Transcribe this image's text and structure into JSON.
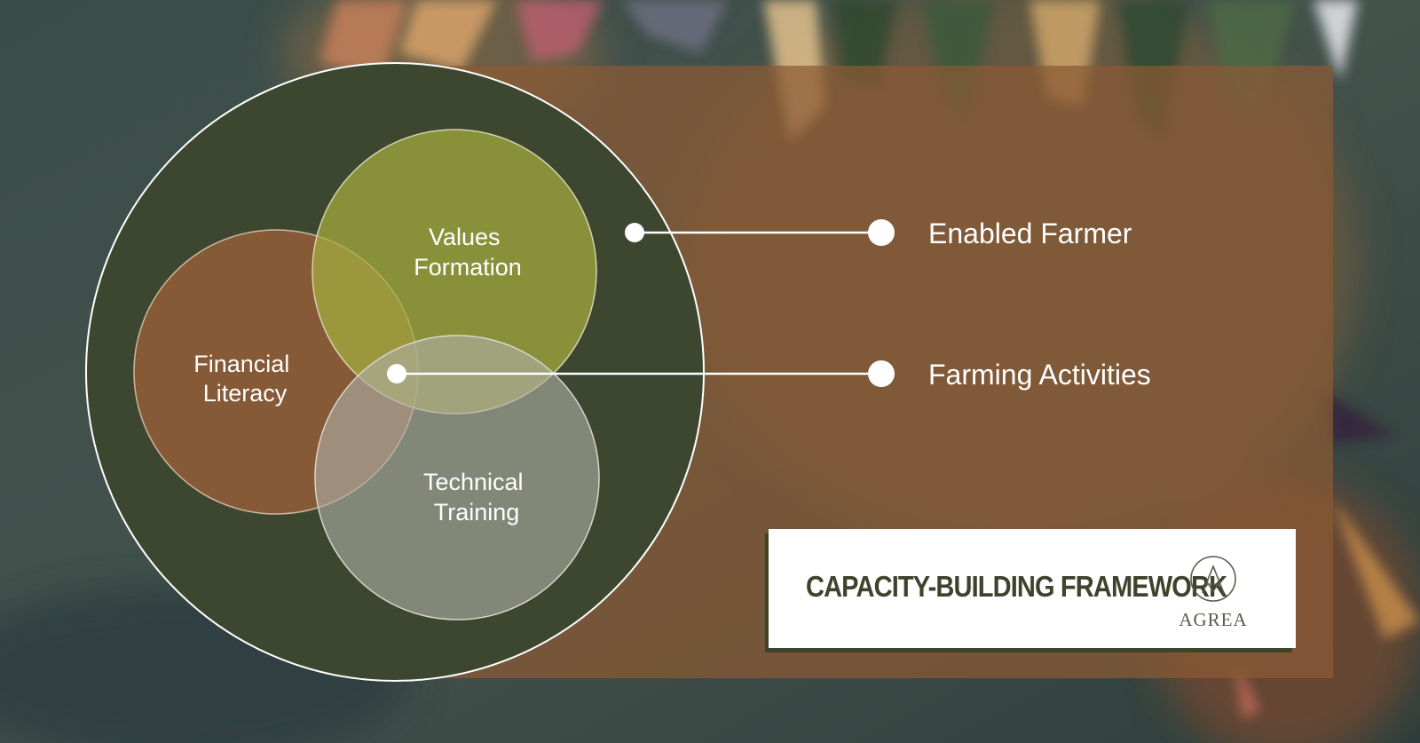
{
  "diagram": {
    "circles": [
      {
        "id": "values",
        "label_lines": [
          "Values",
          "Formation"
        ],
        "color": "#929a37"
      },
      {
        "id": "financial",
        "label_lines": [
          "Financial",
          "Literacy"
        ],
        "color": "#8c5b38"
      },
      {
        "id": "technical",
        "label_lines": [
          "Technical",
          "Training"
        ],
        "color": "#8c8c84"
      }
    ],
    "outer_circle_color": "#3d4730",
    "panel_color": "#8a5a35",
    "callouts": [
      {
        "id": "enabled-farmer",
        "label": "Enabled Farmer"
      },
      {
        "id": "farming-activities",
        "label": "Farming Activities"
      }
    ]
  },
  "title_card": {
    "title": "CAPACITY-BUILDING FRAMEWORK",
    "logo_text": "AGREA",
    "logo_icon": "agrea-monogram-icon"
  }
}
